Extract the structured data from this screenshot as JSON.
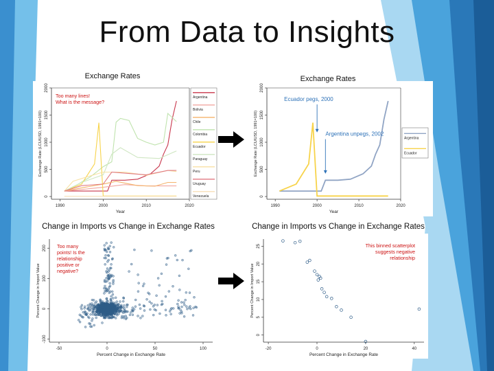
{
  "slide": {
    "title": "From Data to Insights"
  },
  "colors": {
    "Argentina": "#c8344a",
    "Bolivia": "#f2a7a0",
    "Chile": "#f4b36b",
    "Colombia": "#bfe3ad",
    "Ecuador": "#f7d34a",
    "Paraguay": "#cfe6c2",
    "Peru": "#f8e1a3",
    "Uruguay": "#e07a82",
    "Venezuela": "#f7dfb7",
    "ArgentinaRight": "#90a4c4",
    "EcuadorRight": "#f7d34a",
    "annotation_red": "#cc1111",
    "annotation_blue": "#2e72b8",
    "point": "#2f5d88"
  },
  "chart_data": [
    {
      "id": "lines_all",
      "type": "line",
      "title": "Exchange Rates",
      "xlabel": "Year",
      "ylabel": "Exchange Rate (LCU/USD, 1991=100)",
      "xlim": [
        1988,
        2020
      ],
      "ylim": [
        -50,
        2000
      ],
      "xticks": [
        "1990",
        "2000",
        "2010",
        "2020"
      ],
      "yticks": [
        "0",
        "500",
        "1000",
        "1500",
        "2000"
      ],
      "legend_position": "right",
      "annotation": "Too many lines!\nWhat is the message?",
      "series": [
        {
          "name": "Argentina",
          "x": [
            1991,
            1994,
            1997,
            2000,
            2001,
            2002,
            2005,
            2008,
            2011,
            2013,
            2014,
            2015,
            2016,
            2017
          ],
          "y": [
            100,
            100,
            100,
            100,
            100,
            300,
            300,
            320,
            420,
            560,
            780,
            950,
            1420,
            1760
          ]
        },
        {
          "name": "Bolivia",
          "x": [
            1991,
            1995,
            2000,
            2005,
            2010,
            2017
          ],
          "y": [
            100,
            130,
            170,
            220,
            195,
            195
          ]
        },
        {
          "name": "Chile",
          "x": [
            1991,
            1995,
            2000,
            2003,
            2008,
            2012,
            2015,
            2017
          ],
          "y": [
            100,
            160,
            230,
            280,
            200,
            190,
            260,
            260
          ]
        },
        {
          "name": "Colombia",
          "x": [
            1991,
            1994,
            1997,
            2000,
            2002,
            2003,
            2004,
            2006,
            2008,
            2010,
            2012,
            2014,
            2015,
            2017
          ],
          "y": [
            100,
            220,
            360,
            550,
            640,
            1370,
            1440,
            1400,
            1070,
            1000,
            950,
            1000,
            1530,
            1380
          ]
        },
        {
          "name": "Ecuador",
          "x": [
            1991,
            1995,
            1998,
            1999,
            2000,
            2005,
            2017
          ],
          "y": [
            100,
            230,
            600,
            1360,
            10,
            10,
            10
          ]
        },
        {
          "name": "Paraguay",
          "x": [
            1991,
            1995,
            2000,
            2002,
            2004,
            2008,
            2013,
            2017
          ],
          "y": [
            100,
            260,
            400,
            780,
            900,
            720,
            700,
            840
          ]
        },
        {
          "name": "Peru",
          "x": [
            1991,
            1993,
            1997,
            2000,
            2005,
            2010,
            2015,
            2017
          ],
          "y": [
            100,
            280,
            380,
            450,
            450,
            390,
            480,
            460
          ]
        },
        {
          "name": "Uruguay",
          "x": [
            1991,
            1995,
            2000,
            2002,
            2005,
            2010,
            2015,
            2017
          ],
          "y": [
            100,
            200,
            230,
            450,
            430,
            400,
            480,
            480
          ]
        },
        {
          "name": "Venezuela",
          "x": [
            1991,
            2000,
            2017
          ],
          "y": [
            5,
            5,
            5
          ]
        }
      ]
    },
    {
      "id": "lines_focus",
      "type": "line",
      "title": "Exchange Rates",
      "xlabel": "Year",
      "ylabel": "Exchange Rate (LCU/USD, 1991=100)",
      "xlim": [
        1988,
        2020
      ],
      "ylim": [
        -50,
        2000
      ],
      "xticks": [
        "1990",
        "2000",
        "2010",
        "2020"
      ],
      "yticks": [
        "0",
        "500",
        "1000",
        "1500",
        "2000"
      ],
      "legend_position": "right",
      "series": [
        {
          "name": "Argentina",
          "x": [
            1991,
            1994,
            1997,
            2000,
            2001,
            2002,
            2005,
            2008,
            2011,
            2013,
            2014,
            2015,
            2016,
            2017
          ],
          "y": [
            100,
            100,
            100,
            100,
            100,
            300,
            300,
            320,
            420,
            560,
            780,
            950,
            1420,
            1760
          ]
        },
        {
          "name": "Ecuador",
          "x": [
            1991,
            1995,
            1998,
            1999,
            2000,
            2005,
            2017
          ],
          "y": [
            100,
            230,
            600,
            1360,
            10,
            10,
            10
          ]
        }
      ],
      "annotations": [
        {
          "text": "Ecuador pegs, 2000",
          "x": 2000,
          "y": 1760,
          "arrow_to_y": 1180
        },
        {
          "text": "Argentina unpegs, 2002",
          "x": 2002,
          "y": 1120,
          "arrow_to_y": 420
        }
      ]
    },
    {
      "id": "scatter_all",
      "type": "scatter",
      "title": "Change in Imports vs Change in Exchange Rates",
      "xlabel": "Percent Change in Exchange Rate",
      "ylabel": "Percent Change in Import Value",
      "xlim": [
        -60,
        110
      ],
      "ylim": [
        -110,
        230
      ],
      "xticks": [
        "-50",
        "0",
        "50",
        "100"
      ],
      "yticks": [
        "-100",
        "0",
        "100",
        "200"
      ],
      "annotation": "Too many points! Is the relationship positive or negative?"
    },
    {
      "id": "scatter_binned",
      "type": "scatter",
      "title": "Change in Imports vs Change in Exchange Rates",
      "xlabel": "Percent Change in Exchange Rate",
      "ylabel": "Percent Change in Import Value",
      "xlim": [
        -22,
        44
      ],
      "ylim": [
        -2,
        27
      ],
      "xticks": [
        "-20",
        "0",
        "20",
        "40"
      ],
      "yticks": [
        "0",
        "5",
        "10",
        "15",
        "20",
        "25"
      ],
      "annotation": "This binned scatterplot suggests negative relationship",
      "points": {
        "x": [
          -14,
          -9,
          -7,
          -4,
          -3,
          -1,
          0,
          0.5,
          1,
          1.5,
          2,
          3,
          4,
          6,
          8,
          10,
          14,
          20,
          42
        ],
        "y": [
          26.5,
          26,
          26.4,
          20.5,
          21,
          18,
          17,
          15.5,
          16.5,
          16,
          13,
          12,
          10.8,
          10.3,
          8,
          7,
          5,
          -1.8,
          7.3
        ]
      }
    }
  ]
}
